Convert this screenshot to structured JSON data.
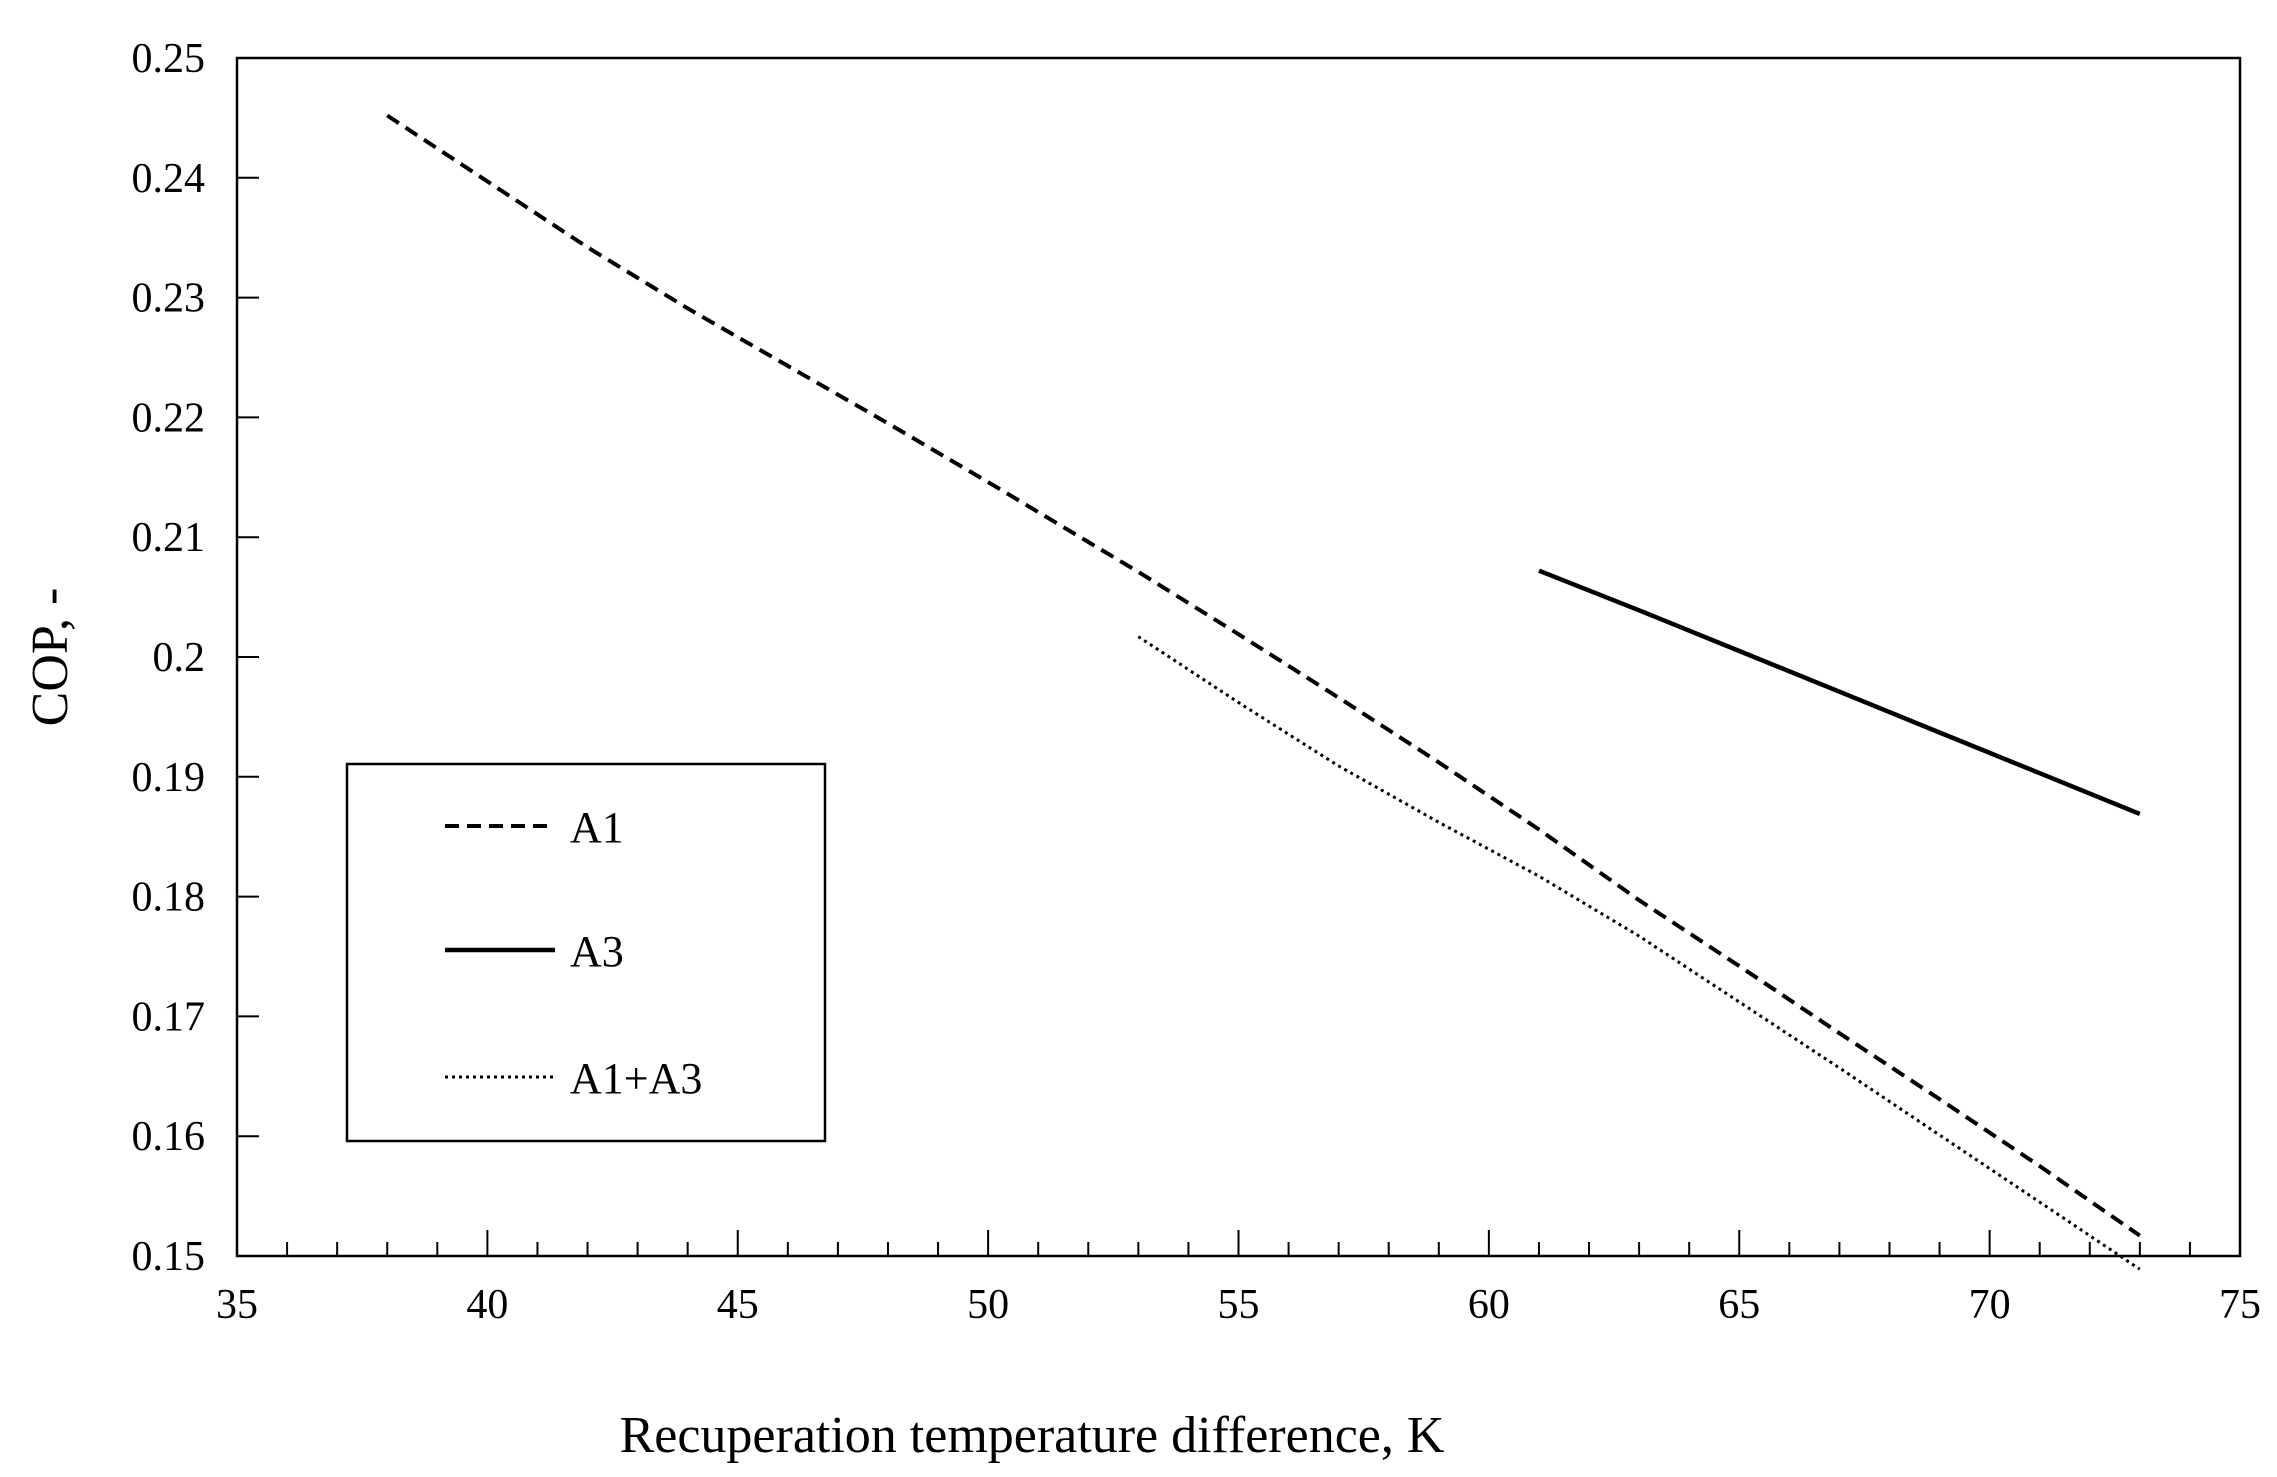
{
  "chart_data": {
    "type": "line",
    "title": "",
    "xlabel": "Recuperation temperature difference, K",
    "ylabel": "COP, -",
    "xlim": [
      35,
      75
    ],
    "ylim": [
      0.15,
      0.25
    ],
    "xticks": [
      "35",
      "40",
      "45",
      "50",
      "55",
      "60",
      "65",
      "70",
      "75"
    ],
    "yticks": [
      "0.15",
      "0.16",
      "0.17",
      "0.18",
      "0.19",
      "0.2",
      "0.21",
      "0.22",
      "0.23",
      "0.24",
      "0.25"
    ],
    "grid": false,
    "legend_position": "left",
    "series": [
      {
        "name": "A1",
        "style": "dashed",
        "x": [
          38,
          40,
          42,
          44,
          46,
          48,
          50,
          52,
          53,
          55,
          57,
          59,
          61,
          63,
          65,
          67,
          69,
          71,
          73
        ],
        "y": [
          0.2452,
          0.2397,
          0.2342,
          0.2291,
          0.2243,
          0.2195,
          0.2146,
          0.2096,
          0.2071,
          0.2019,
          0.1966,
          0.1912,
          0.1856,
          0.1797,
          0.1742,
          0.1686,
          0.1631,
          0.1575,
          0.1517
        ]
      },
      {
        "name": "A3",
        "style": "solid",
        "x": [
          61,
          63,
          65,
          67,
          69,
          71,
          73
        ],
        "y": [
          0.2072,
          0.2039,
          0.2005,
          0.1971,
          0.1937,
          0.1903,
          0.1869
        ]
      },
      {
        "name": "A1+A3",
        "style": "dotted",
        "x": [
          53,
          55,
          57,
          59,
          61,
          63,
          65,
          67,
          69,
          71,
          73
        ],
        "y": [
          0.2017,
          0.1962,
          0.1909,
          0.1862,
          0.1817,
          0.1767,
          0.1712,
          0.1657,
          0.1601,
          0.1545,
          0.1489
        ]
      }
    ]
  }
}
